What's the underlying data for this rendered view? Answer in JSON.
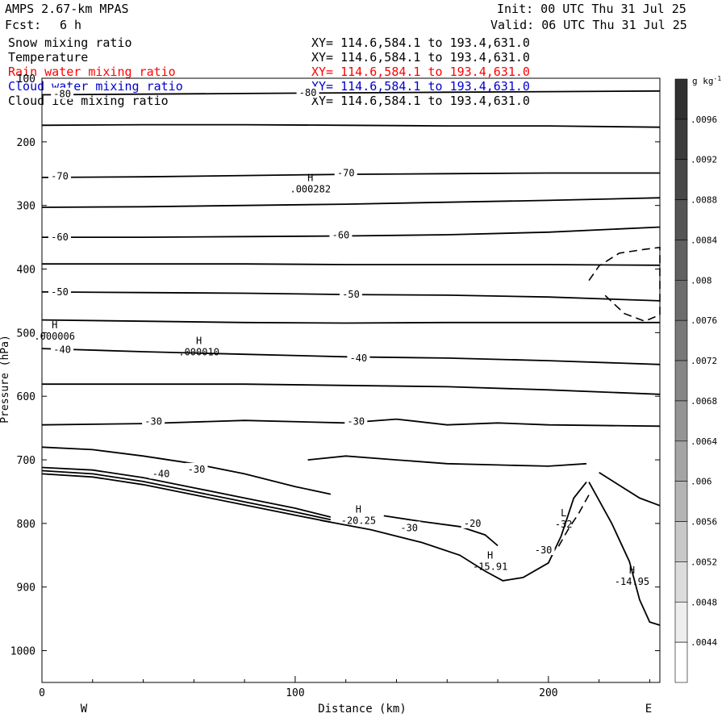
{
  "header": {
    "model": "AMPS 2.67-km MPAS",
    "forecast_label": "Fcst:",
    "forecast_value": "6 h",
    "init": "Init: 00 UTC Thu 31 Jul 25",
    "valid": "Valid: 06 UTC Thu 31 Jul 25"
  },
  "fields": [
    {
      "name": "Snow mixing ratio",
      "xy": "XY= 114.6,584.1 to 193.4,631.0",
      "color": "#000000"
    },
    {
      "name": "Temperature",
      "xy": "XY= 114.6,584.1 to 193.4,631.0",
      "color": "#000000"
    },
    {
      "name": "Rain water mixing ratio",
      "xy": "XY= 114.6,584.1 to 193.4,631.0",
      "color": "#ff0000"
    },
    {
      "name": "Cloud water mixing ratio",
      "xy": "XY= 114.6,584.1 to 193.4,631.0",
      "color": "#0000cc"
    },
    {
      "name": "Cloud ice mixing ratio",
      "xy": "XY= 114.6,584.1 to 193.4,631.0",
      "color": "#000000"
    }
  ],
  "chart_data": {
    "type": "line",
    "title": "",
    "xlabel": "Distance (km)",
    "ylabel": "Pressure (hPa)",
    "xlim": [
      0,
      244
    ],
    "ylim": [
      100,
      1050
    ],
    "y_scale": "linear-inverted",
    "x_ticks": [
      0,
      100,
      200
    ],
    "y_ticks": [
      100,
      200,
      300,
      400,
      500,
      600,
      700,
      800,
      900,
      1000
    ],
    "x_end_labels": {
      "left": "W",
      "right": "E"
    },
    "temperature_isotherms": [
      {
        "label": "-80",
        "points": [
          [
            0,
            126
          ],
          [
            40,
            125
          ],
          [
            80,
            124
          ],
          [
            120,
            123
          ],
          [
            160,
            122
          ],
          [
            200,
            121
          ],
          [
            244,
            120
          ]
        ],
        "label_at": [
          [
            8,
            125
          ],
          [
            105,
            123
          ]
        ]
      },
      {
        "label": "",
        "points": [
          [
            0,
            174
          ],
          [
            40,
            173
          ],
          [
            80,
            173
          ],
          [
            120,
            174
          ],
          [
            160,
            175
          ],
          [
            200,
            175
          ],
          [
            244,
            177
          ]
        ],
        "label_at": []
      },
      {
        "label": "-70",
        "points": [
          [
            0,
            256
          ],
          [
            40,
            255
          ],
          [
            80,
            253
          ],
          [
            120,
            251
          ],
          [
            160,
            250
          ],
          [
            200,
            249
          ],
          [
            244,
            249
          ]
        ],
        "label_at": [
          [
            7,
            254
          ],
          [
            120,
            249
          ]
        ]
      },
      {
        "label": "",
        "points": [
          [
            0,
            303
          ],
          [
            40,
            302
          ],
          [
            80,
            300
          ],
          [
            120,
            298
          ],
          [
            160,
            295
          ],
          [
            200,
            292
          ],
          [
            244,
            288
          ]
        ],
        "label_at": []
      },
      {
        "label": "-60",
        "points": [
          [
            0,
            350
          ],
          [
            40,
            350
          ],
          [
            80,
            349
          ],
          [
            120,
            348
          ],
          [
            160,
            346
          ],
          [
            200,
            342
          ],
          [
            244,
            334
          ]
        ],
        "label_at": [
          [
            7,
            350
          ],
          [
            118,
            347
          ]
        ]
      },
      {
        "label": "",
        "points": [
          [
            0,
            392
          ],
          [
            40,
            392
          ],
          [
            80,
            392
          ],
          [
            120,
            393
          ],
          [
            160,
            393
          ],
          [
            200,
            393
          ],
          [
            244,
            394
          ]
        ],
        "label_at": []
      },
      {
        "label": "-50",
        "points": [
          [
            0,
            436
          ],
          [
            40,
            437
          ],
          [
            80,
            438
          ],
          [
            120,
            440
          ],
          [
            160,
            441
          ],
          [
            200,
            444
          ],
          [
            244,
            450
          ]
        ],
        "label_at": [
          [
            7,
            436
          ],
          [
            122,
            440
          ]
        ]
      },
      {
        "label": "",
        "points": [
          [
            0,
            480
          ],
          [
            40,
            482
          ],
          [
            80,
            484
          ],
          [
            120,
            485
          ],
          [
            160,
            484
          ],
          [
            200,
            484
          ],
          [
            244,
            484
          ]
        ],
        "label_at": []
      },
      {
        "label": "-40",
        "points": [
          [
            0,
            525
          ],
          [
            40,
            530
          ],
          [
            80,
            534
          ],
          [
            120,
            538
          ],
          [
            160,
            540
          ],
          [
            200,
            544
          ],
          [
            244,
            550
          ]
        ],
        "label_at": [
          [
            8,
            527
          ],
          [
            125,
            540
          ]
        ]
      },
      {
        "label": "",
        "points": [
          [
            0,
            581
          ],
          [
            40,
            581
          ],
          [
            80,
            581
          ],
          [
            120,
            583
          ],
          [
            160,
            585
          ],
          [
            200,
            590
          ],
          [
            244,
            597
          ]
        ],
        "label_at": []
      },
      {
        "label": "-30",
        "points": [
          [
            0,
            645
          ],
          [
            40,
            643
          ],
          [
            80,
            638
          ],
          [
            120,
            642
          ],
          [
            140,
            636
          ],
          [
            160,
            645
          ],
          [
            180,
            642
          ],
          [
            200,
            645
          ],
          [
            244,
            647
          ]
        ],
        "label_at": [
          [
            44,
            640
          ],
          [
            124,
            640
          ]
        ]
      }
    ],
    "lower_contours": [
      {
        "label": "-30",
        "points": [
          [
            0,
            680
          ],
          [
            20,
            684
          ],
          [
            40,
            694
          ],
          [
            60,
            706
          ],
          [
            80,
            722
          ],
          [
            100,
            742
          ],
          [
            114,
            754
          ]
        ],
        "label_at": [
          [
            61,
            715
          ]
        ]
      },
      {
        "label": "-40",
        "points": [
          [
            0,
            712
          ],
          [
            20,
            716
          ],
          [
            40,
            728
          ],
          [
            60,
            744
          ],
          [
            80,
            760
          ],
          [
            100,
            776
          ],
          [
            114,
            790
          ]
        ],
        "label_at": [
          [
            47,
            722
          ]
        ]
      },
      {
        "label": "",
        "points": [
          [
            0,
            717
          ],
          [
            20,
            722
          ],
          [
            40,
            734
          ],
          [
            60,
            750
          ],
          [
            80,
            766
          ],
          [
            100,
            782
          ],
          [
            114,
            794
          ]
        ],
        "label_at": []
      },
      {
        "label": "",
        "points": [
          [
            0,
            722
          ],
          [
            20,
            727
          ],
          [
            40,
            739
          ],
          [
            60,
            755
          ],
          [
            80,
            771
          ],
          [
            100,
            787
          ],
          [
            114,
            798
          ]
        ],
        "label_at": []
      },
      {
        "label": "",
        "points": [
          [
            105,
            700
          ],
          [
            120,
            694
          ],
          [
            140,
            700
          ],
          [
            160,
            706
          ],
          [
            180,
            708
          ],
          [
            200,
            710
          ],
          [
            215,
            706
          ]
        ],
        "label_at": []
      },
      {
        "label": "-20",
        "points": [
          [
            135,
            788
          ],
          [
            150,
            797
          ],
          [
            165,
            805
          ],
          [
            175,
            818
          ],
          [
            180,
            835
          ]
        ],
        "label_at": [
          [
            170,
            800
          ]
        ]
      },
      {
        "label": "-30",
        "points": [
          [
            110,
            795
          ],
          [
            130,
            810
          ],
          [
            150,
            830
          ],
          [
            165,
            850
          ],
          [
            175,
            875
          ],
          [
            182,
            890
          ],
          [
            190,
            885
          ],
          [
            200,
            862
          ],
          [
            205,
            820
          ],
          [
            210,
            760
          ],
          [
            215,
            735
          ]
        ],
        "label_at": [
          [
            145,
            807
          ],
          [
            198,
            842
          ]
        ]
      },
      {
        "label": "",
        "points": [
          [
            216,
            735
          ],
          [
            225,
            800
          ],
          [
            232,
            860
          ],
          [
            236,
            920
          ],
          [
            240,
            955
          ],
          [
            244,
            960
          ]
        ],
        "label_at": []
      },
      {
        "label": "",
        "points": [
          [
            220,
            720
          ],
          [
            228,
            740
          ],
          [
            236,
            760
          ],
          [
            244,
            772
          ]
        ],
        "label_at": []
      }
    ],
    "dashed_contours": [
      {
        "label": "",
        "points": [
          [
            216,
            418
          ],
          [
            220,
            395
          ],
          [
            228,
            375
          ],
          [
            238,
            369
          ],
          [
            244,
            366
          ],
          [
            244,
            472
          ],
          [
            238,
            482
          ],
          [
            230,
            470
          ],
          [
            222,
            440
          ]
        ]
      },
      {
        "label": "-32",
        "points": [
          [
            204,
            836
          ],
          [
            208,
            808
          ],
          [
            212,
            784
          ],
          [
            216,
            755
          ]
        ]
      }
    ],
    "extrema": [
      {
        "kind": "H",
        "value": ".000282",
        "x": 106,
        "p": 262
      },
      {
        "kind": "H",
        "value": ".000006",
        "x": 5,
        "p": 493
      },
      {
        "kind": "H",
        "value": ".000010",
        "x": 62,
        "p": 518
      },
      {
        "kind": "H",
        "value": "-20.25",
        "x": 125,
        "p": 783
      },
      {
        "kind": "L",
        "value": "-32",
        "x": 206,
        "p": 789
      },
      {
        "kind": "H",
        "value": "-15.91",
        "x": 177,
        "p": 855
      },
      {
        "kind": "H",
        "value": "-14.95",
        "x": 233,
        "p": 879
      }
    ],
    "colorbar": {
      "unit": "g kg",
      "unit_sup": "-1",
      "levels": [
        ".0096",
        ".0092",
        ".0088",
        ".0084",
        ".008",
        ".0076",
        ".0072",
        ".0068",
        ".0064",
        ".006",
        ".0056",
        ".0052",
        ".0048",
        ".0044"
      ],
      "fills": [
        "#303030",
        "#3c3c3c",
        "#484848",
        "#545454",
        "#606060",
        "#6c6c6c",
        "#787878",
        "#868686",
        "#949494",
        "#a4a4a4",
        "#b4b4b4",
        "#c8c8c8",
        "#dcdcdc",
        "#eeeeee",
        "#ffffff"
      ]
    }
  }
}
